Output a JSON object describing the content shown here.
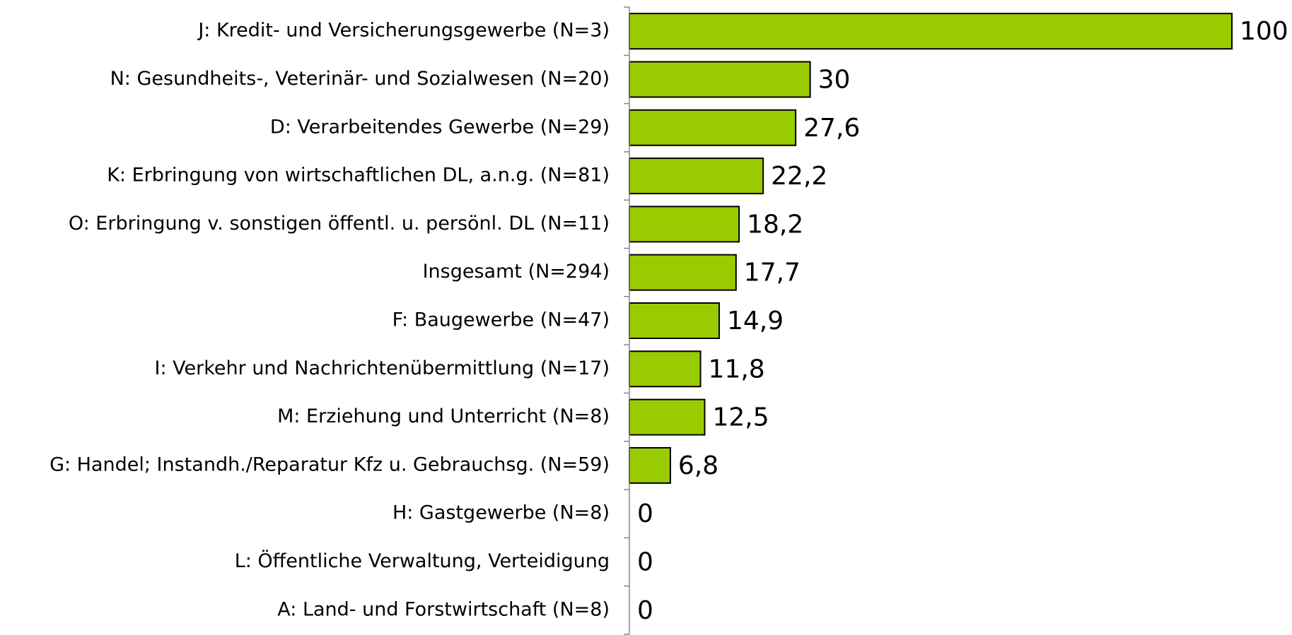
{
  "chart_data": {
    "type": "bar",
    "orientation": "horizontal",
    "categories": [
      "J: Kredit- und Versicherungsgewerbe (N=3)",
      "N: Gesundheits-, Veterinär- und Sozialwesen (N=20)",
      "D: Verarbeitendes Gewerbe (N=29)",
      "K: Erbringung von wirtschaftlichen DL, a.n.g. (N=81)",
      "O: Erbringung v. sonstigen öffentl. u. persönl. DL (N=11)",
      "Insgesamt (N=294)",
      "F: Baugewerbe (N=47)",
      "I: Verkehr und Nachrichtenübermittlung (N=17)",
      "M: Erziehung und Unterricht (N=8)",
      "G: Handel; Instandh./Reparatur Kfz u. Gebrauchsg. (N=59)",
      "H: Gastgewerbe (N=8)",
      "L: Öffentliche Verwaltung, Verteidigung",
      "A: Land- und Forstwirtschaft (N=8)"
    ],
    "values": [
      100,
      30,
      27.6,
      22.2,
      18.2,
      17.7,
      14.9,
      11.8,
      12.5,
      6.8,
      0,
      0,
      0
    ],
    "value_labels": [
      "100",
      "30",
      "27,6",
      "22,2",
      "18,2",
      "17,7",
      "14,9",
      "11,8",
      "12,5",
      "6,8",
      "0",
      "0",
      "0"
    ],
    "color": "#99cc00",
    "xlim": [
      0,
      100
    ]
  }
}
